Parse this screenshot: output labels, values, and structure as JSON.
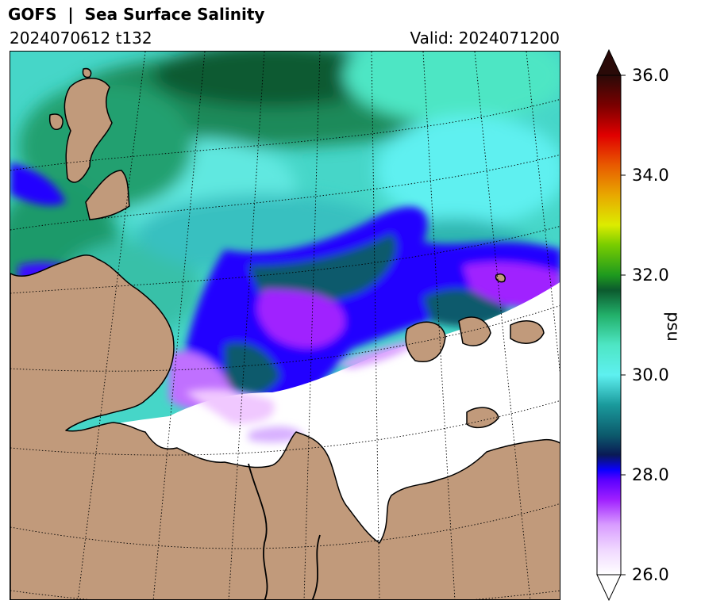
{
  "header": {
    "title": "GOFS  |  Sea Surface Salinity",
    "run": "2024070612 t132",
    "valid": "Valid: 2024071200"
  },
  "colors": {
    "land": "#c19a7b",
    "coast": "#000000",
    "fresh_low": "#ffffff",
    "purple": "#8a10ff",
    "blue": "#2200ff",
    "dark_teal": "#0d4f5c",
    "teal": "#2aa8a8",
    "cyan": "#55f0e6",
    "green": "#1f8a55",
    "dark_green": "#0c5a2f"
  },
  "chart_data": {
    "type": "heatmap",
    "variable": "Sea Surface Salinity",
    "colorbar": {
      "label": "psu",
      "range": [
        26.0,
        36.0
      ],
      "extend": "both",
      "ticks": [
        {
          "value": 26.0,
          "label": "26.0"
        },
        {
          "value": 28.0,
          "label": "28.0"
        },
        {
          "value": 30.0,
          "label": "30.0"
        },
        {
          "value": 32.0,
          "label": "32.0"
        },
        {
          "value": 34.0,
          "label": "34.0"
        },
        {
          "value": 36.0,
          "label": "36.0"
        }
      ],
      "stops": [
        {
          "value": 26.0,
          "color": "#ffffff"
        },
        {
          "value": 26.5,
          "color": "#f0d8ff"
        },
        {
          "value": 27.0,
          "color": "#d89cff"
        },
        {
          "value": 27.5,
          "color": "#a020ff"
        },
        {
          "value": 27.9,
          "color": "#5a00ff"
        },
        {
          "value": 28.1,
          "color": "#0a00ff"
        },
        {
          "value": 28.4,
          "color": "#0a1a55"
        },
        {
          "value": 28.8,
          "color": "#0c5a6c"
        },
        {
          "value": 29.4,
          "color": "#1a9a9c"
        },
        {
          "value": 30.0,
          "color": "#5ef0f0"
        },
        {
          "value": 30.6,
          "color": "#4ee6c4"
        },
        {
          "value": 31.2,
          "color": "#22b06a"
        },
        {
          "value": 31.7,
          "color": "#0c5a2e"
        },
        {
          "value": 32.0,
          "color": "#1e9a1e"
        },
        {
          "value": 32.6,
          "color": "#78cc00"
        },
        {
          "value": 33.0,
          "color": "#dcec00"
        },
        {
          "value": 33.6,
          "color": "#e8a800"
        },
        {
          "value": 34.2,
          "color": "#e85a00"
        },
        {
          "value": 34.8,
          "color": "#e00000"
        },
        {
          "value": 35.4,
          "color": "#7a0000"
        },
        {
          "value": 36.0,
          "color": "#2a0a08"
        }
      ]
    },
    "grid": true
  }
}
